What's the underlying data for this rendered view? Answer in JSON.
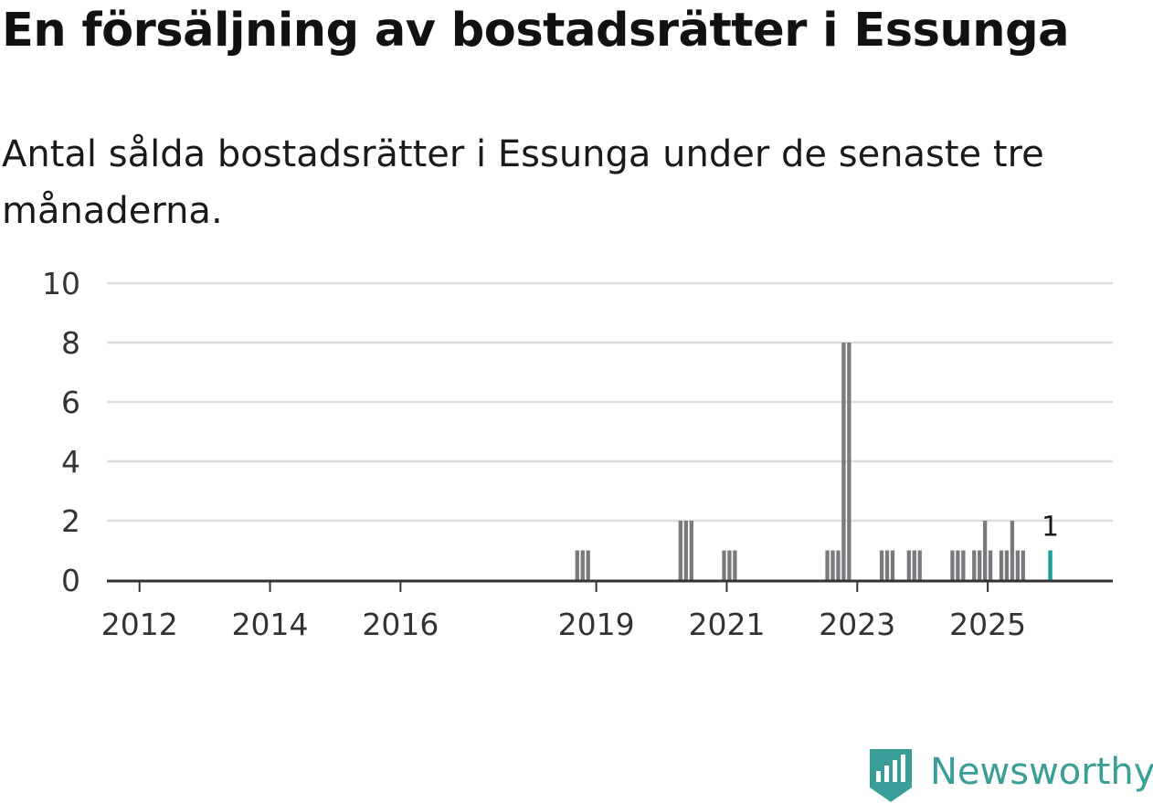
{
  "header": {
    "title": "En försäljning av bostadsrätter i Essunga",
    "subtitle": "Antal sålda bostadsrätter i Essunga under de senaste tre månaderna."
  },
  "brand": {
    "name": "Newsworthy",
    "color": "#3a9e98",
    "icon": "newsworthy-logo-icon"
  },
  "colors": {
    "bar": "#7a7a7e",
    "highlight": "#1b9e98",
    "grid": "#dcdcdc",
    "axis": "#333333"
  },
  "chart_data": {
    "type": "bar",
    "title": "En försäljning av bostadsrätter i Essunga",
    "xlabel": "",
    "ylabel": "",
    "ylim": [
      0,
      10
    ],
    "yticks": [
      0,
      2,
      4,
      6,
      8,
      10
    ],
    "xticks": [
      "2012",
      "2014",
      "2016",
      "2019",
      "2021",
      "2023",
      "2025"
    ],
    "xlim": [
      "2011-07",
      "2026-12"
    ],
    "grid": true,
    "series": [
      {
        "x": [
          "2018-09",
          "2018-10",
          "2018-11",
          "2020-04",
          "2020-05",
          "2020-06",
          "2020-12",
          "2021-01",
          "2021-02",
          "2022-07",
          "2022-08",
          "2022-09",
          "2022-10",
          "2022-11",
          "2023-05",
          "2023-06",
          "2023-07",
          "2023-10",
          "2023-11",
          "2023-12",
          "2024-06",
          "2024-07",
          "2024-08",
          "2024-10",
          "2024-11",
          "2024-12",
          "2025-01",
          "2025-03",
          "2025-04",
          "2025-05",
          "2025-06",
          "2025-07"
        ],
        "values": [
          1,
          1,
          1,
          2,
          2,
          2,
          1,
          1,
          1,
          1,
          1,
          1,
          8,
          8,
          1,
          1,
          1,
          1,
          1,
          1,
          1,
          1,
          1,
          1,
          1,
          2,
          1,
          1,
          1,
          2,
          1,
          1
        ]
      }
    ],
    "highlight": {
      "x": "2025-12",
      "value": 1,
      "label": "1"
    }
  }
}
